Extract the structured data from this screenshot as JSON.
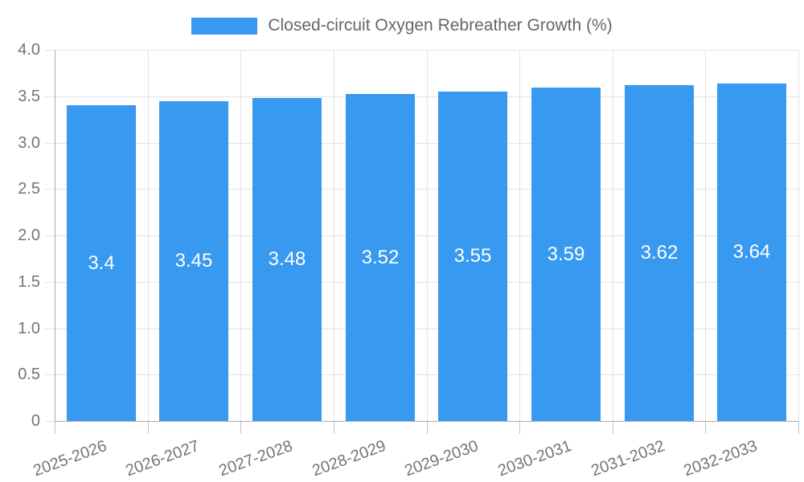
{
  "legend": {
    "label": "Closed-circuit Oxygen Rebreather Growth (%)"
  },
  "chart_data": {
    "type": "bar",
    "title": "Closed-circuit Oxygen Rebreather Growth (%)",
    "categories": [
      "2025-2026",
      "2026-2027",
      "2027-2028",
      "2028-2029",
      "2029-2030",
      "2030-2031",
      "2031-2032",
      "2032-2033"
    ],
    "values": [
      3.4,
      3.45,
      3.48,
      3.52,
      3.55,
      3.59,
      3.62,
      3.64
    ],
    "bar_labels": [
      "3.4",
      "3.45",
      "3.48",
      "3.52",
      "3.55",
      "3.59",
      "3.62",
      "3.64"
    ],
    "xlabel": "",
    "ylabel": "",
    "ylim": [
      0,
      4
    ],
    "yticks": [
      0,
      0.5,
      1,
      1.5,
      2,
      2.5,
      3,
      3.5,
      4
    ],
    "ytick_labels": [
      "0",
      "0.5",
      "1.0",
      "1.5",
      "2.0",
      "2.5",
      "3.0",
      "3.5",
      "4.0"
    ],
    "grid": true,
    "legend_position": "top",
    "colors": {
      "bar": "#3799ef",
      "grid": "#e3e3e3",
      "axis": "#ababab",
      "tick": "#c2c2c2",
      "tick_text": "#757575",
      "bar_label_text": "#ffffff",
      "legend_text": "#666666"
    }
  }
}
